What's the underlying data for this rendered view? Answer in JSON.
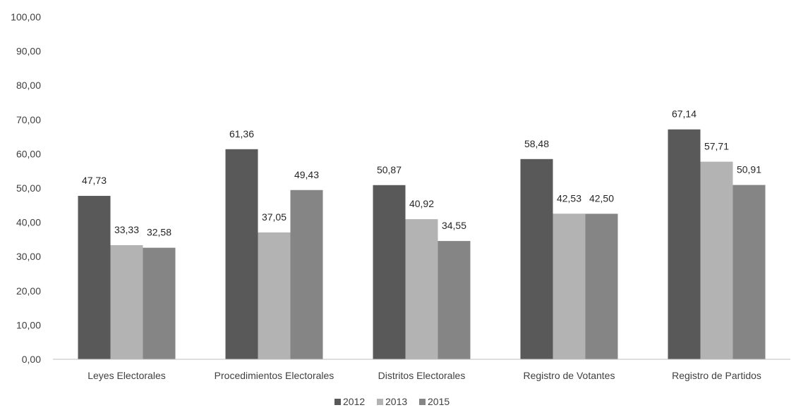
{
  "chart_data": {
    "type": "bar",
    "categories": [
      "Leyes Electorales",
      "Procedimientos Electorales",
      "Distritos Electorales",
      "Registro de Votantes",
      "Registro de Partidos"
    ],
    "series": [
      {
        "name": "2012",
        "color": "#595959",
        "values": [
          47.73,
          61.36,
          50.87,
          58.48,
          67.14
        ],
        "labels": [
          "47,73",
          "61,36",
          "50,87",
          "58,48",
          "67,14"
        ]
      },
      {
        "name": "2013",
        "color": "#b3b3b3",
        "values": [
          33.33,
          37.05,
          40.92,
          42.53,
          57.71
        ],
        "labels": [
          "33,33",
          "37,05",
          "40,92",
          "42,53",
          "57,71"
        ]
      },
      {
        "name": "2015",
        "color": "#858585",
        "values": [
          32.58,
          49.43,
          34.55,
          42.5,
          50.91
        ],
        "labels": [
          "32,58",
          "49,43",
          "34,55",
          "42,50",
          "50,91"
        ]
      }
    ],
    "ylim": [
      0,
      100
    ],
    "yticks": [
      0,
      10,
      20,
      30,
      40,
      50,
      60,
      70,
      80,
      90,
      100
    ],
    "ytick_labels": [
      "0,00",
      "10,00",
      "20,00",
      "30,00",
      "40,00",
      "50,00",
      "60,00",
      "70,00",
      "80,00",
      "90,00",
      "100,00"
    ],
    "title": "",
    "xlabel": "",
    "ylabel": "",
    "grid": false,
    "legend_position": "bottom-center"
  }
}
